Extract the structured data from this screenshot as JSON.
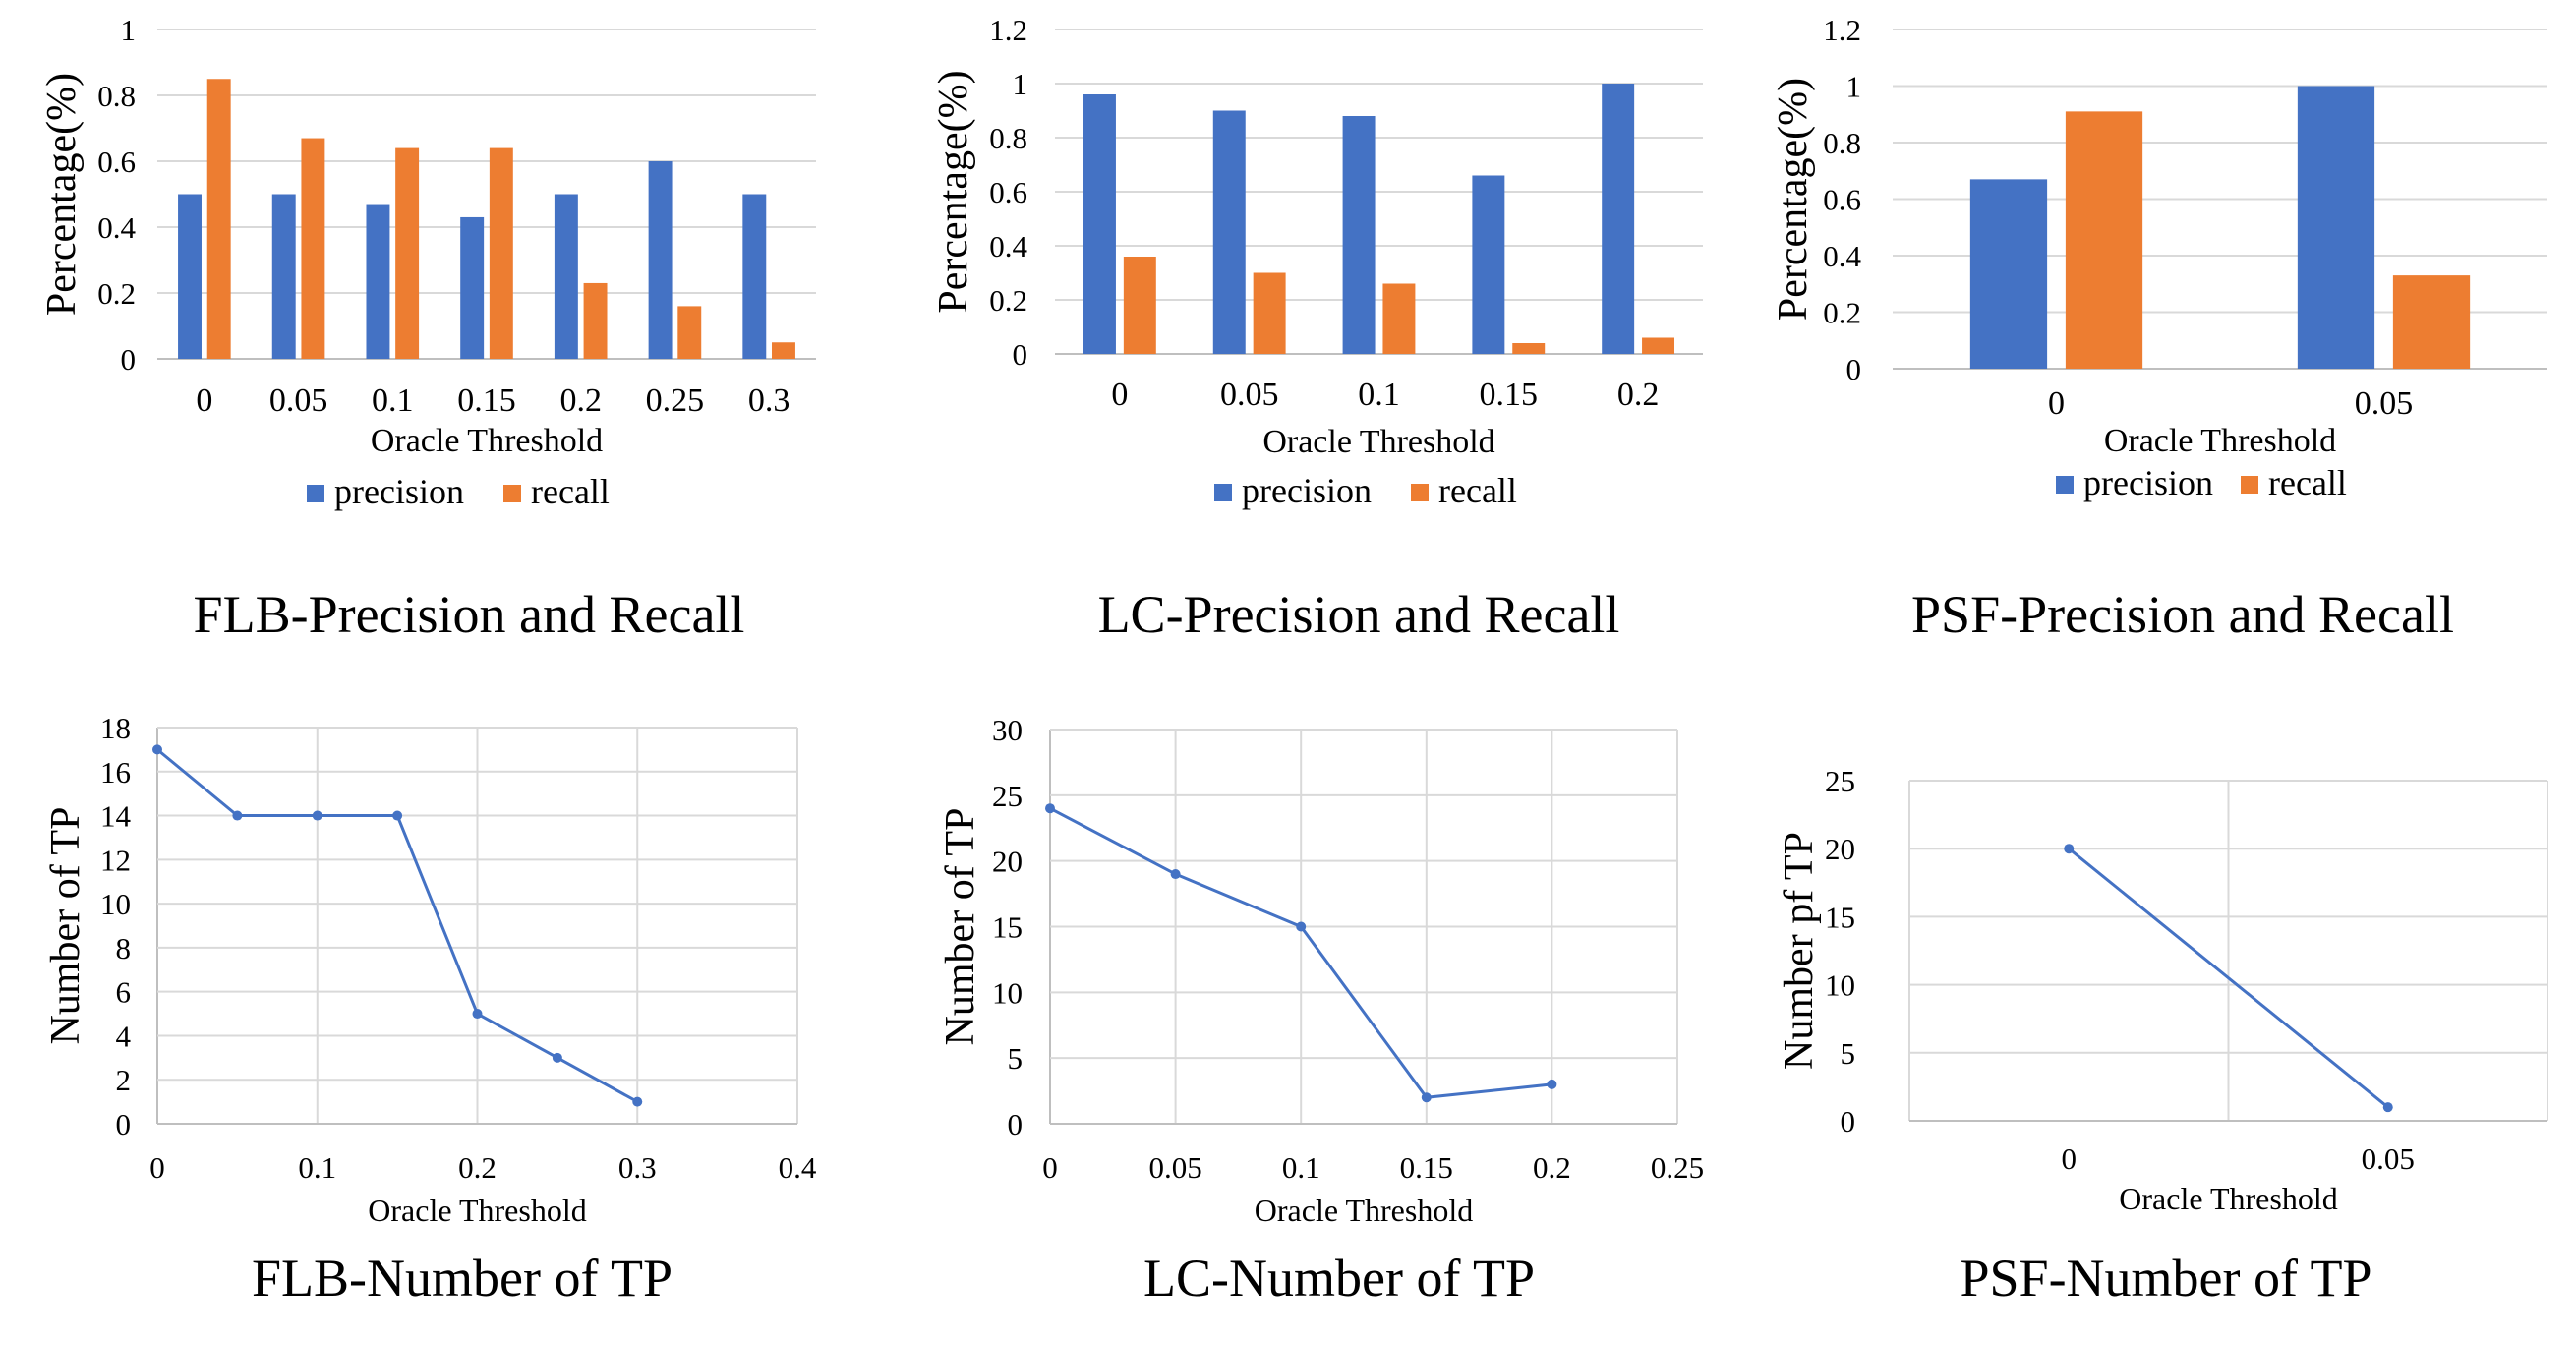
{
  "colors": {
    "precision": "#4472c4",
    "recall": "#ed7d31",
    "line": "#4472c4",
    "grid": "#d9d9d9"
  },
  "chart_data": [
    {
      "id": "flb_pr",
      "type": "bar",
      "caption": "FLB-Precision and Recall",
      "xlabel": "Oracle Threshold",
      "ylabel": "Percentage(%)",
      "categories": [
        "0",
        "0.05",
        "0.1",
        "0.15",
        "0.2",
        "0.25",
        "0.3"
      ],
      "series": [
        {
          "name": "precision",
          "values": [
            0.5,
            0.5,
            0.47,
            0.43,
            0.5,
            0.6,
            0.5
          ]
        },
        {
          "name": "recall",
          "values": [
            0.85,
            0.67,
            0.64,
            0.64,
            0.23,
            0.16,
            0.05
          ]
        }
      ],
      "ylim": [
        0,
        1
      ],
      "yticks": [
        "0",
        "0.2",
        "0.4",
        "0.6",
        "0.8",
        "1"
      ],
      "legend": "bottom",
      "grid": true
    },
    {
      "id": "lc_pr",
      "type": "bar",
      "caption": "LC-Precision and Recall",
      "xlabel": "Oracle Threshold",
      "ylabel": "Percentage(%)",
      "categories": [
        "0",
        "0.05",
        "0.1",
        "0.15",
        "0.2"
      ],
      "series": [
        {
          "name": "precision",
          "values": [
            0.96,
            0.9,
            0.88,
            0.66,
            1.0
          ]
        },
        {
          "name": "recall",
          "values": [
            0.36,
            0.3,
            0.26,
            0.04,
            0.06
          ]
        }
      ],
      "ylim": [
        0,
        1.2
      ],
      "yticks": [
        "0",
        "0.2",
        "0.4",
        "0.6",
        "0.8",
        "1",
        "1.2"
      ],
      "legend": "bottom",
      "grid": true
    },
    {
      "id": "psf_pr",
      "type": "bar",
      "caption": "PSF-Precision and Recall",
      "xlabel": "Oracle Threshold",
      "ylabel": "Percentage(%)",
      "categories": [
        "0",
        "0.05"
      ],
      "series": [
        {
          "name": "precision",
          "values": [
            0.67,
            1.0
          ]
        },
        {
          "name": "recall",
          "values": [
            0.91,
            0.33
          ]
        }
      ],
      "ylim": [
        0,
        1.2
      ],
      "yticks": [
        "0",
        "0.2",
        "0.4",
        "0.6",
        "0.8",
        "1",
        "1.2"
      ],
      "legend": "bottom",
      "grid": true
    },
    {
      "id": "flb_tp",
      "type": "scatter",
      "caption": "FLB-Number of TP",
      "xlabel": "Oracle Threshold",
      "ylabel": "Number of TP",
      "x": [
        0,
        0.05,
        0.1,
        0.15,
        0.2,
        0.25,
        0.3
      ],
      "y": [
        17,
        14,
        14,
        14,
        5,
        3,
        1
      ],
      "xlim": [
        0,
        0.4
      ],
      "ylim": [
        0,
        18
      ],
      "xticks": [
        "0",
        "0.1",
        "0.2",
        "0.3",
        "0.4"
      ],
      "yticks": [
        "0",
        "2",
        "4",
        "6",
        "8",
        "10",
        "12",
        "14",
        "16",
        "18"
      ],
      "grid": true
    },
    {
      "id": "lc_tp",
      "type": "scatter",
      "caption": "LC-Number of TP",
      "xlabel": "Oracle Threshold",
      "ylabel": "Number of TP",
      "x": [
        0,
        0.05,
        0.1,
        0.15,
        0.2
      ],
      "y": [
        24,
        19,
        15,
        2,
        3
      ],
      "xlim": [
        0,
        0.25
      ],
      "ylim": [
        0,
        30
      ],
      "xticks": [
        "0",
        "0.05",
        "0.1",
        "0.15",
        "0.2",
        "0.25"
      ],
      "yticks": [
        "0",
        "5",
        "10",
        "15",
        "20",
        "25",
        "30"
      ],
      "grid": true
    },
    {
      "id": "psf_tp",
      "type": "line",
      "caption": "PSF-Number of TP",
      "xlabel": "Oracle Threshold",
      "ylabel": "Number pf TP",
      "categories": [
        "0",
        "0.05"
      ],
      "values": [
        20,
        1
      ],
      "ylim": [
        0,
        25
      ],
      "yticks": [
        "0",
        "5",
        "10",
        "15",
        "20",
        "25"
      ],
      "grid": true
    }
  ]
}
